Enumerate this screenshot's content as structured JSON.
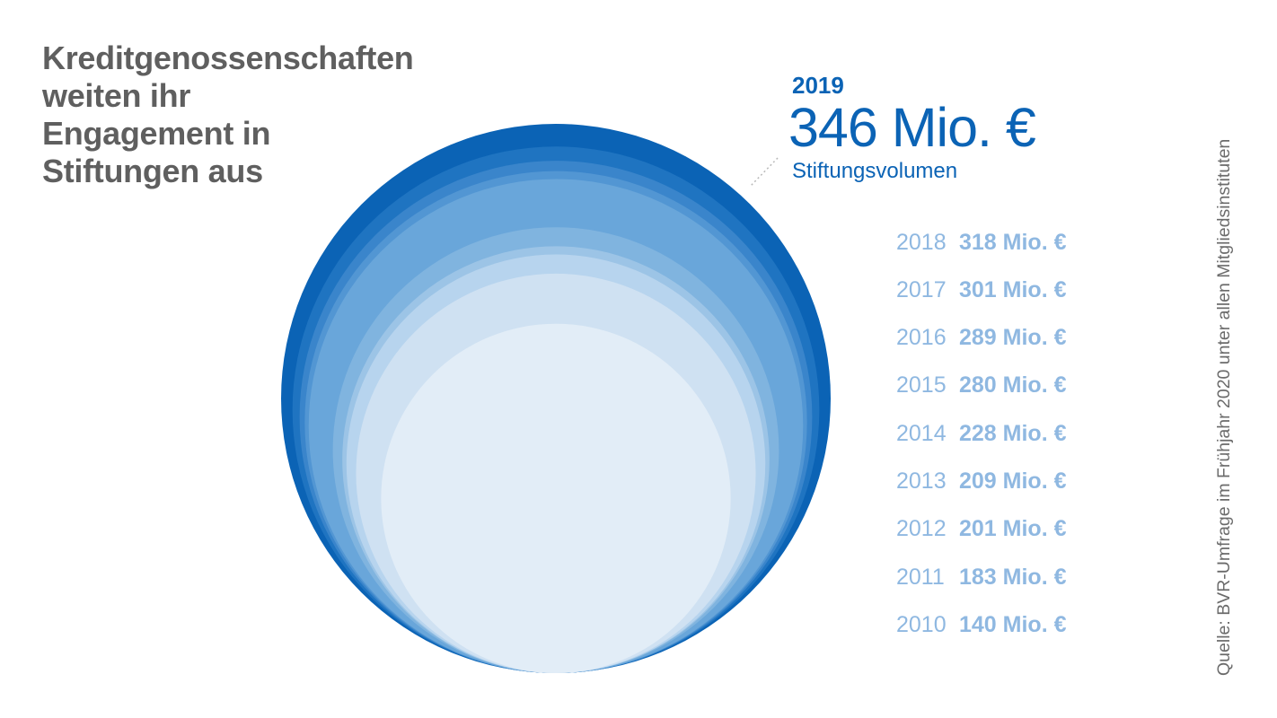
{
  "title_lines": [
    "Kreditgenossenschaften",
    "weiten ihr",
    "Engagement in",
    "Stiftungen aus"
  ],
  "source": "Quelle: BVR-Umfrage im Frühjahr 2020 unter allen Mitgliedsinstituten",
  "colors": {
    "title": "#5f5f5f",
    "highlight": "#0b63b5",
    "list_text": "#8fb8e1",
    "source": "#6b6b6b",
    "circle_fills": [
      "#0b63b5",
      "#1f74c1",
      "#3a85cb",
      "#5296d3",
      "#69a6da",
      "#80b4df",
      "#9cc4e6",
      "#b7d4ee",
      "#cfe1f2",
      "#e2edf7"
    ]
  },
  "highlight": {
    "year": "2019",
    "value": "346 Mio. €",
    "label": "Stiftungsvolumen"
  },
  "chart_data": {
    "type": "bubble",
    "unit": "Mio. €",
    "series": [
      {
        "year": "2019",
        "value": 346,
        "label": "346 Mio. €"
      },
      {
        "year": "2018",
        "value": 318,
        "label": "318 Mio. €"
      },
      {
        "year": "2017",
        "value": 301,
        "label": "301 Mio. €"
      },
      {
        "year": "2016",
        "value": 289,
        "label": "289 Mio. €"
      },
      {
        "year": "2015",
        "value": 280,
        "label": "280 Mio. €"
      },
      {
        "year": "2014",
        "value": 228,
        "label": "228 Mio. €"
      },
      {
        "year": "2013",
        "value": 209,
        "label": "209 Mio. €"
      },
      {
        "year": "2012",
        "value": 201,
        "label": "201 Mio. €"
      },
      {
        "year": "2011",
        "value": 183,
        "label": "183 Mio. €"
      },
      {
        "year": "2010",
        "value": 140,
        "label": "140 Mio. €"
      }
    ]
  }
}
